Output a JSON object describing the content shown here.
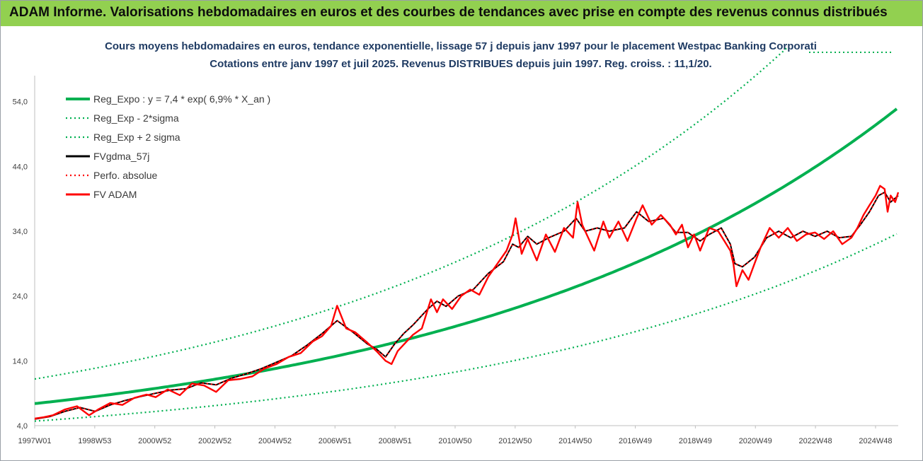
{
  "banner": {
    "title": "ADAM Informe. Valorisations hebdomadaires en euros et des courbes de tendances avec prise en compte des revenus connus distribués"
  },
  "colors": {
    "banner": "#92d050",
    "reg_green": "#00b050",
    "fv_red": "#ff0000",
    "fvg_black": "#000000"
  },
  "chart_data": {
    "type": "line",
    "title_line1": "Cours moyens hebdomadaires en euros, tendance exponentielle, lissage 57 j depuis janv 1997 pour le placement Westpac Banking Corporati",
    "title_line2": "Cotations entre janv 1997 et juil 2025. Revenus DISTRIBUES depuis juin 1997. Reg. croiss. : 11,1/20.",
    "ylim": [
      4,
      58
    ],
    "y_ticks": [
      "54,0",
      "44,0",
      "34,0",
      "24,0",
      "14,0",
      "4,0"
    ],
    "x_ticks": [
      "1997W01",
      "1998W53",
      "2000W52",
      "2002W52",
      "2004W52",
      "2006W51",
      "2008W51",
      "2010W50",
      "2012W50",
      "2014W50",
      "2016W49",
      "2018W49",
      "2020W49",
      "2022W48",
      "2024W48"
    ],
    "xlim": [
      1997.0,
      2025.55
    ],
    "legend_position": "top-left",
    "grid": false,
    "series": [
      {
        "name": "Reg_Expo : y = 7,4 * exp( 6,9% *  X_an )",
        "style": "solid",
        "color": "#00b050",
        "a": 7.4,
        "rate": 0.069
      },
      {
        "name": "Reg_Exp - 2*sigma",
        "style": "dotted",
        "color": "#00b050",
        "a": 4.7,
        "rate": 0.069
      },
      {
        "name": "Reg_Exp + 2 sigma",
        "style": "dotted",
        "color": "#00b050",
        "a": 11.2,
        "rate": 0.069
      },
      {
        "name": "FVgdma_57j",
        "style": "solid",
        "color": "#000000",
        "x": [
          1997.0,
          1997.5,
          1998.0,
          1998.5,
          1999.0,
          1999.5,
          2000.0,
          2000.5,
          2001.0,
          2001.5,
          2002.0,
          2002.5,
          2003.0,
          2003.5,
          2004.0,
          2004.5,
          2005.0,
          2005.5,
          2006.0,
          2006.5,
          2007.0,
          2007.5,
          2008.0,
          2008.3,
          2008.6,
          2008.9,
          2009.2,
          2009.5,
          2010.0,
          2010.3,
          2010.6,
          2011.0,
          2011.5,
          2012.0,
          2012.5,
          2012.8,
          2013.0,
          2013.3,
          2013.6,
          2014.0,
          2014.5,
          2014.9,
          2015.2,
          2015.6,
          2016.0,
          2016.5,
          2016.9,
          2017.3,
          2017.8,
          2018.2,
          2018.6,
          2019.0,
          2019.3,
          2019.7,
          2020.0,
          2020.15,
          2020.4,
          2020.8,
          2021.2,
          2021.6,
          2022.0,
          2022.4,
          2022.8,
          2023.2,
          2023.6,
          2024.0,
          2024.3,
          2024.6,
          2024.9,
          2025.1,
          2025.3,
          2025.55
        ],
        "y": [
          5.0,
          5.4,
          6.2,
          6.8,
          6.2,
          7.2,
          7.9,
          8.5,
          9.0,
          9.5,
          9.7,
          10.6,
          10.3,
          11.3,
          12.0,
          12.8,
          13.8,
          14.8,
          16.4,
          18.2,
          20.2,
          18.5,
          16.6,
          15.8,
          14.6,
          16.6,
          18.2,
          19.5,
          22.0,
          23.2,
          22.4,
          24.0,
          25.0,
          27.5,
          29.3,
          32.0,
          31.5,
          33.2,
          32.0,
          33.0,
          34.0,
          36.0,
          34.0,
          34.5,
          34.0,
          34.5,
          37.0,
          35.5,
          36.0,
          33.8,
          33.8,
          32.5,
          33.5,
          34.5,
          32.0,
          29.0,
          28.5,
          30.0,
          33.0,
          34.0,
          33.0,
          34.0,
          33.2,
          34.0,
          33.0,
          33.2,
          35.0,
          37.0,
          39.5,
          40.0,
          38.5,
          39.5
        ]
      },
      {
        "name": "Perfo. absolue",
        "style": "dotted",
        "color": "#ff0000",
        "x": [
          1997.0,
          1997.5,
          1998.0,
          1998.5,
          1999.0,
          1999.5,
          2000.0,
          2000.5,
          2001.0,
          2001.5,
          2002.0,
          2002.5,
          2003.0,
          2003.5,
          2004.0,
          2004.5,
          2005.0,
          2005.5,
          2006.0,
          2006.5,
          2007.0,
          2007.5,
          2008.0,
          2008.3,
          2008.6,
          2008.9,
          2009.2,
          2009.5,
          2010.0,
          2010.3,
          2010.6,
          2011.0,
          2011.5,
          2012.0,
          2012.5,
          2012.8,
          2013.0,
          2013.3,
          2013.6,
          2014.0,
          2014.5,
          2014.9,
          2015.2,
          2015.6,
          2016.0,
          2016.5,
          2016.9,
          2017.3,
          2017.8,
          2018.2,
          2018.6,
          2019.0,
          2019.3,
          2019.7,
          2020.0,
          2020.15,
          2020.4,
          2020.8,
          2021.2,
          2021.6,
          2022.0,
          2022.4,
          2022.8,
          2023.2,
          2023.6,
          2024.0,
          2024.3,
          2024.6,
          2024.9,
          2025.1,
          2025.3,
          2025.55
        ],
        "y": [
          5.0,
          5.4,
          6.2,
          6.8,
          6.2,
          7.2,
          7.9,
          8.5,
          9.0,
          9.5,
          9.7,
          10.6,
          10.3,
          11.3,
          12.0,
          12.8,
          13.8,
          14.8,
          16.4,
          18.2,
          20.2,
          18.5,
          16.6,
          15.8,
          14.6,
          16.6,
          18.2,
          19.5,
          22.0,
          23.2,
          22.4,
          24.0,
          25.0,
          27.5,
          29.3,
          32.0,
          31.5,
          33.2,
          32.0,
          33.0,
          34.0,
          36.0,
          34.0,
          34.5,
          34.0,
          34.5,
          37.0,
          35.5,
          36.0,
          33.8,
          33.8,
          32.5,
          33.5,
          34.5,
          32.0,
          29.0,
          28.5,
          30.0,
          33.0,
          34.0,
          33.0,
          34.0,
          33.2,
          34.0,
          33.0,
          33.2,
          35.0,
          37.0,
          39.5,
          40.0,
          38.5,
          39.5
        ]
      },
      {
        "name": "FV ADAM",
        "style": "solid",
        "color": "#ff0000",
        "x": [
          1997.0,
          1997.3,
          1997.6,
          1998.0,
          1998.4,
          1998.8,
          1999.1,
          1999.5,
          1999.9,
          2000.3,
          2000.7,
          2001.0,
          2001.4,
          2001.8,
          2002.2,
          2002.6,
          2003.0,
          2003.4,
          2003.8,
          2004.2,
          2004.6,
          2005.0,
          2005.4,
          2005.8,
          2006.2,
          2006.5,
          2006.8,
          2007.0,
          2007.3,
          2007.6,
          2008.0,
          2008.3,
          2008.6,
          2008.8,
          2009.0,
          2009.2,
          2009.5,
          2009.8,
          2010.1,
          2010.3,
          2010.5,
          2010.8,
          2011.1,
          2011.4,
          2011.7,
          2012.0,
          2012.3,
          2012.6,
          2012.8,
          2012.9,
          2013.1,
          2013.3,
          2013.6,
          2013.9,
          2014.2,
          2014.5,
          2014.8,
          2014.95,
          2015.1,
          2015.3,
          2015.5,
          2015.8,
          2016.0,
          2016.3,
          2016.6,
          2016.9,
          2017.1,
          2017.4,
          2017.7,
          2018.0,
          2018.2,
          2018.4,
          2018.6,
          2018.8,
          2019.0,
          2019.3,
          2019.6,
          2019.8,
          2020.0,
          2020.1,
          2020.2,
          2020.4,
          2020.6,
          2020.8,
          2021.0,
          2021.3,
          2021.6,
          2021.9,
          2022.2,
          2022.5,
          2022.8,
          2023.1,
          2023.4,
          2023.7,
          2024.0,
          2024.2,
          2024.4,
          2024.6,
          2024.8,
          2024.95,
          2025.1,
          2025.2,
          2025.3,
          2025.45,
          2025.55
        ],
        "y": [
          5.1,
          5.3,
          5.6,
          6.5,
          7.0,
          5.6,
          6.5,
          7.5,
          7.2,
          8.3,
          8.8,
          8.4,
          9.6,
          8.7,
          10.5,
          10.2,
          9.2,
          11.0,
          11.2,
          11.6,
          12.8,
          13.5,
          14.6,
          15.2,
          17.0,
          17.8,
          19.4,
          22.5,
          19.0,
          18.4,
          16.8,
          15.5,
          14.0,
          13.5,
          15.5,
          16.5,
          18.0,
          19.0,
          23.5,
          21.5,
          23.5,
          22.0,
          24.0,
          25.0,
          24.2,
          27.0,
          29.0,
          31.0,
          33.5,
          36.0,
          30.5,
          32.8,
          29.5,
          33.5,
          30.8,
          34.5,
          33.0,
          38.5,
          35.0,
          33.0,
          31.0,
          35.5,
          33.0,
          35.5,
          32.5,
          36.0,
          38.0,
          35.0,
          36.5,
          35.0,
          33.5,
          35.0,
          31.5,
          33.5,
          31.0,
          34.5,
          34.0,
          32.5,
          31.0,
          29.0,
          25.5,
          28.0,
          26.5,
          29.0,
          31.5,
          34.5,
          33.0,
          34.5,
          32.5,
          33.5,
          33.8,
          32.8,
          34.0,
          32.0,
          33.0,
          34.5,
          36.5,
          38.0,
          39.5,
          41.0,
          40.5,
          37.0,
          39.5,
          38.5,
          40.0
        ]
      }
    ]
  }
}
